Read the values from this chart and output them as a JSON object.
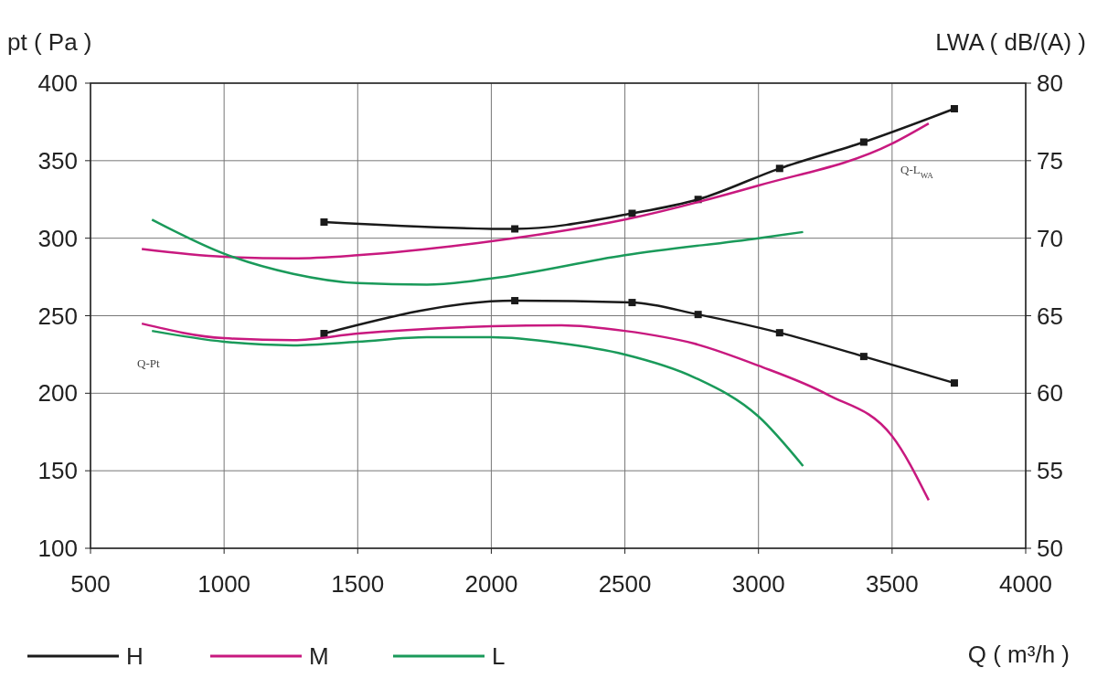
{
  "chart_data": {
    "type": "line",
    "xlabel": "Q ( m³/h )",
    "ylabel": "pt ( Pa )",
    "y2label": "LWA ( dB/(A) )",
    "xlim": [
      500,
      4000
    ],
    "xticks": [
      500,
      1000,
      1500,
      2000,
      2500,
      3000,
      3500,
      4000
    ],
    "ylim": [
      100,
      400
    ],
    "yticks": [
      100,
      150,
      200,
      250,
      300,
      350,
      400
    ],
    "y2lim": [
      50,
      80
    ],
    "y2ticks": [
      50,
      55,
      60,
      65,
      70,
      75,
      80
    ],
    "grid": true,
    "legend": "bottom",
    "annotations": [
      "Q-Pt",
      "Q-L$_{WA}$"
    ],
    "series": [
      {
        "name": "H",
        "color": "#1a1a1a",
        "marker": "square",
        "x": [
          1374,
          2088,
          2527,
          2774,
          3079,
          3394,
          3733
        ],
        "values": [
          238.5,
          259.7,
          258.5,
          250.8,
          239,
          223.7,
          206.6
        ]
      },
      {
        "name": "M",
        "color": "#c8197f",
        "marker": "none",
        "x": [
          692,
          1000,
          1259,
          1500,
          2000,
          2263,
          2500,
          2760,
          3000,
          3260,
          3500,
          3637
        ],
        "values": [
          244.9,
          235.5,
          234.3,
          238.5,
          243.2,
          243.8,
          240.2,
          232,
          217.8,
          199,
          172.4,
          131
        ]
      },
      {
        "name": "L",
        "color": "#1a9a5a",
        "marker": "none",
        "x": [
          730,
          1000,
          1259,
          1500,
          1759,
          2000,
          2250,
          2500,
          2760,
          3000,
          3167
        ],
        "values": [
          240.2,
          233.2,
          230.9,
          233.2,
          236.1,
          236.1,
          232.5,
          225,
          210.2,
          185,
          153
        ]
      },
      {
        "color": "#1a1a1a",
        "marker": "square",
        "axis": "y2",
        "x": [
          1374,
          2088,
          2527,
          2774,
          3079,
          3394,
          3733
        ],
        "values": [
          71.04,
          70.6,
          71.6,
          72.5,
          74.5,
          76.2,
          78.35
        ]
      },
      {
        "color": "#c8197f",
        "marker": "none",
        "axis": "y2",
        "x": [
          692,
          1000,
          1259,
          1500,
          2000,
          2500,
          3000,
          3500,
          3637
        ],
        "values": [
          69.3,
          68.8,
          68.7,
          68.9,
          69.8,
          71.2,
          73.4,
          76.1,
          77.4
        ]
      },
      {
        "color": "#1a9a5a",
        "marker": "none",
        "axis": "y2",
        "x": [
          730,
          1000,
          1259,
          1500,
          1759,
          2000,
          2500,
          3000,
          3167
        ],
        "values": [
          71.2,
          69,
          67.7,
          67.1,
          67,
          67.4,
          68.9,
          70,
          70.4
        ]
      }
    ]
  }
}
